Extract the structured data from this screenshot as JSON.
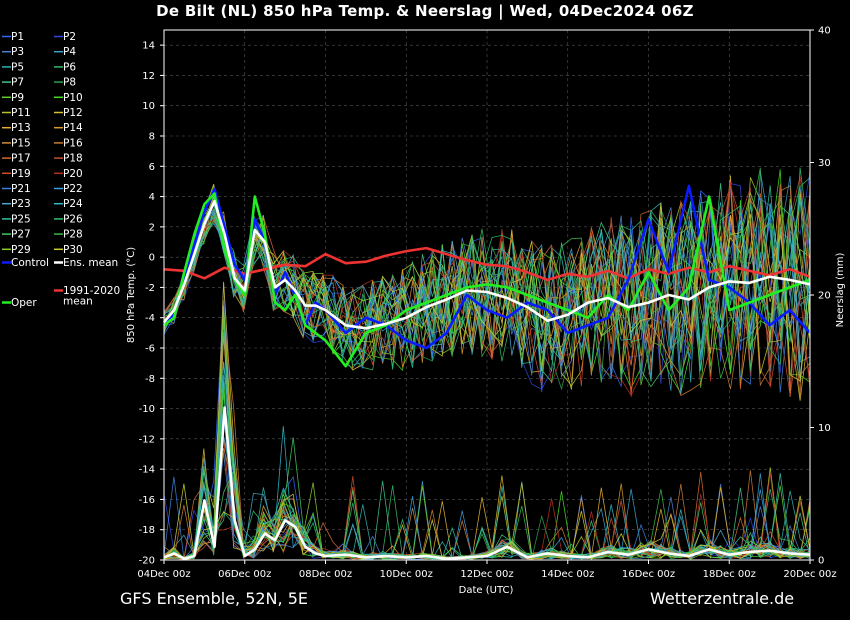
{
  "header": {
    "title": "De Bilt  (NL)  850 hPa Temp. & Neerslag | Wed, 04Dec2024 06Z"
  },
  "footer": {
    "model": "GFS Ensemble, 52N, 5E",
    "site": "Wetterzentrale.de"
  },
  "chart_data": {
    "type": "line",
    "xlabel": "Date (UTC)",
    "ylabel": "850 hPa Temp. (°C)",
    "y2label": "Neerslag (mm)",
    "xlim": [
      0,
      16
    ],
    "ylim": [
      -20,
      15
    ],
    "y2lim": [
      0,
      40
    ],
    "x_ticks": [
      {
        "pos": 0,
        "label": "04Dec 00z"
      },
      {
        "pos": 2,
        "label": "06Dec 00z"
      },
      {
        "pos": 4,
        "label": "08Dec 00z"
      },
      {
        "pos": 6,
        "label": "10Dec 00z"
      },
      {
        "pos": 8,
        "label": "12Dec 00z"
      },
      {
        "pos": 10,
        "label": "14Dec 00z"
      },
      {
        "pos": 12,
        "label": "16Dec 00z"
      },
      {
        "pos": 14,
        "label": "18Dec 00z"
      },
      {
        "pos": 16,
        "label": "20Dec 00z"
      }
    ],
    "y_ticks": [
      14,
      12,
      10,
      8,
      6,
      4,
      2,
      0,
      -2,
      -4,
      -6,
      -8,
      -10,
      -12,
      -14,
      -16,
      -18,
      -20
    ],
    "y2_ticks": [
      40,
      30,
      20,
      10,
      0
    ],
    "grid": true,
    "legend": [
      {
        "name": "P1",
        "color": "#3366ff"
      },
      {
        "name": "P2",
        "color": "#3344dd"
      },
      {
        "name": "P3",
        "color": "#4f7fd0"
      },
      {
        "name": "P4",
        "color": "#3aa0c8"
      },
      {
        "name": "P5",
        "color": "#2fb3b0"
      },
      {
        "name": "P6",
        "color": "#33bb66"
      },
      {
        "name": "P7",
        "color": "#3ec48a"
      },
      {
        "name": "P8",
        "color": "#2e9e4e"
      },
      {
        "name": "P9",
        "color": "#66cc33"
      },
      {
        "name": "P10",
        "color": "#44dd22"
      },
      {
        "name": "P11",
        "color": "#b8c42e"
      },
      {
        "name": "P12",
        "color": "#d4c030"
      },
      {
        "name": "P13",
        "color": "#e0b030"
      },
      {
        "name": "P14",
        "color": "#d99a2a"
      },
      {
        "name": "P15",
        "color": "#d28a3a"
      },
      {
        "name": "P16",
        "color": "#c97a33"
      },
      {
        "name": "P17",
        "color": "#d06a30"
      },
      {
        "name": "P18",
        "color": "#c05030"
      },
      {
        "name": "P19",
        "color": "#d24a2a"
      },
      {
        "name": "P20",
        "color": "#b83020"
      },
      {
        "name": "P21",
        "color": "#3a7fd8"
      },
      {
        "name": "P22",
        "color": "#3a9fe0"
      },
      {
        "name": "P23",
        "color": "#4aa8d0"
      },
      {
        "name": "P24",
        "color": "#30b8c8"
      },
      {
        "name": "P25",
        "color": "#30c0a0"
      },
      {
        "name": "P26",
        "color": "#2ec070"
      },
      {
        "name": "P27",
        "color": "#40c860"
      },
      {
        "name": "P28",
        "color": "#38b848"
      },
      {
        "name": "P29",
        "color": "#8ccc30"
      },
      {
        "name": "P30",
        "color": "#c8cc30"
      },
      {
        "name": "Control",
        "color": "#0a1cff"
      },
      {
        "name": "Ens. mean",
        "color": "#ffffff"
      },
      {
        "name": "Oper",
        "color": "#22ee22"
      },
      {
        "name": "1991-2020\nmean",
        "color": "#ee3333"
      }
    ],
    "series": [
      {
        "name": "Ens. mean",
        "color": "#ffffff",
        "x": [
          0,
          0.25,
          0.5,
          0.75,
          1,
          1.25,
          1.5,
          1.75,
          2,
          2.25,
          2.5,
          2.75,
          3,
          3.25,
          3.5,
          3.75,
          4,
          4.5,
          5,
          5.5,
          6,
          6.5,
          7,
          7.5,
          8,
          8.5,
          9,
          9.5,
          10,
          10.5,
          11,
          11.5,
          12,
          12.5,
          13,
          13.5,
          14,
          14.5,
          15,
          15.5,
          16
        ],
        "y": [
          -4.3,
          -3.5,
          -1.8,
          0.2,
          2.2,
          3.7,
          1.5,
          -1.4,
          -2.2,
          1.8,
          1.0,
          -2.0,
          -1.5,
          -2.2,
          -3.2,
          -3.2,
          -3.5,
          -4.5,
          -4.7,
          -4.4,
          -4.0,
          -3.3,
          -2.8,
          -2.2,
          -2.3,
          -2.7,
          -3.3,
          -4.2,
          -3.8,
          -3.0,
          -2.7,
          -3.3,
          -3.0,
          -2.5,
          -2.8,
          -2.0,
          -1.6,
          -1.7,
          -1.3,
          -1.5,
          -1.8
        ]
      },
      {
        "name": "Control",
        "color": "#0a1cff",
        "x": [
          0,
          0.25,
          0.5,
          0.75,
          1,
          1.25,
          1.5,
          1.75,
          2,
          2.25,
          2.5,
          2.75,
          3,
          3.25,
          3.5,
          3.75,
          4,
          4.5,
          5,
          5.5,
          6,
          6.5,
          7,
          7.5,
          8,
          8.5,
          9,
          9.5,
          10,
          10.5,
          11,
          11.5,
          12,
          12.5,
          13,
          13.5,
          14,
          14.5,
          15,
          15.5,
          16
        ],
        "y": [
          -4.5,
          -3.8,
          -1.5,
          0.8,
          3.0,
          4.5,
          2.0,
          -0.5,
          -1.5,
          2.5,
          1.0,
          -2.5,
          -1.0,
          -2.5,
          -4.5,
          -3.0,
          -3.5,
          -5.0,
          -4.0,
          -4.5,
          -5.5,
          -6.0,
          -5.0,
          -2.5,
          -3.5,
          -4.0,
          -3.0,
          -3.5,
          -5.0,
          -4.5,
          -4.0,
          -1.5,
          2.5,
          -1.0,
          4.7,
          -1.5,
          -2.0,
          -3.0,
          -4.5,
          -3.5,
          -5.0
        ]
      },
      {
        "name": "Oper",
        "color": "#22ee22",
        "x": [
          0,
          0.25,
          0.5,
          0.75,
          1,
          1.25,
          1.5,
          1.75,
          2,
          2.25,
          2.5,
          2.75,
          3,
          3.25,
          3.5,
          3.75,
          4,
          4.5,
          5,
          5.5,
          6,
          6.5,
          7,
          7.5,
          8,
          8.5,
          9,
          9.5,
          10,
          10.5,
          11,
          11.5,
          12,
          12.5,
          13,
          13.5,
          14,
          14.5,
          15,
          15.5,
          16
        ],
        "y": [
          -4.5,
          -4.0,
          -1.0,
          1.5,
          3.5,
          4.2,
          0.5,
          -1.5,
          -2.5,
          4.0,
          1.5,
          -3.0,
          -3.5,
          -2.5,
          -4.5,
          -5.0,
          -5.5,
          -7.2,
          -5.0,
          -4.5,
          -3.5,
          -3.0,
          -2.5,
          -2.0,
          -1.8,
          -2.0,
          -2.5,
          -3.0,
          -3.5,
          -4.0,
          -2.5,
          -3.5,
          -1.0,
          -3.5,
          -2.0,
          4.0,
          -3.5,
          -3.0,
          -2.5,
          -2.0,
          -1.5
        ]
      },
      {
        "name": "1991-2020\nmean",
        "color": "#ee3333",
        "x": [
          0,
          0.5,
          1,
          1.5,
          2,
          2.5,
          3,
          3.5,
          4,
          4.5,
          5,
          5.5,
          6,
          6.5,
          7,
          7.5,
          8,
          8.5,
          9,
          9.5,
          10,
          10.5,
          11,
          11.5,
          12,
          12.5,
          13,
          13.5,
          14,
          14.5,
          15,
          15.5,
          16
        ],
        "y": [
          -0.8,
          -0.9,
          -1.4,
          -0.7,
          -1.1,
          -0.8,
          -0.5,
          -0.6,
          0.2,
          -0.4,
          -0.3,
          0.1,
          0.4,
          0.6,
          0.2,
          -0.2,
          -0.5,
          -0.6,
          -1.0,
          -1.5,
          -1.1,
          -1.3,
          -0.9,
          -1.4,
          -0.8,
          -1.1,
          -0.7,
          -1.0,
          -0.6,
          -0.9,
          -1.2,
          -0.8,
          -1.3
        ]
      },
      {
        "name": "Ens. mean precipitation (mm)",
        "color": "#ffffff",
        "axis": "y2",
        "x": [
          0,
          0.25,
          0.5,
          0.75,
          1,
          1.25,
          1.5,
          1.75,
          2,
          2.25,
          2.5,
          2.75,
          3,
          3.25,
          3.5,
          3.75,
          4,
          4.5,
          5,
          5.5,
          6,
          6.5,
          7,
          7.5,
          8,
          8.5,
          9,
          9.5,
          10,
          10.5,
          11,
          11.5,
          12,
          12.5,
          13,
          13.5,
          14,
          14.5,
          15,
          15.5,
          16
        ],
        "y": [
          0.2,
          0.5,
          0.1,
          0.3,
          4.5,
          1.0,
          11.5,
          3.0,
          0.3,
          0.8,
          2.0,
          1.5,
          3.0,
          2.5,
          1.0,
          0.5,
          0.3,
          0.4,
          0.2,
          0.3,
          0.2,
          0.3,
          0.1,
          0.2,
          0.3,
          1.0,
          0.2,
          0.5,
          0.3,
          0.2,
          0.6,
          0.4,
          0.8,
          0.5,
          0.3,
          0.8,
          0.4,
          0.6,
          0.7,
          0.5,
          0.4
        ]
      }
    ]
  }
}
